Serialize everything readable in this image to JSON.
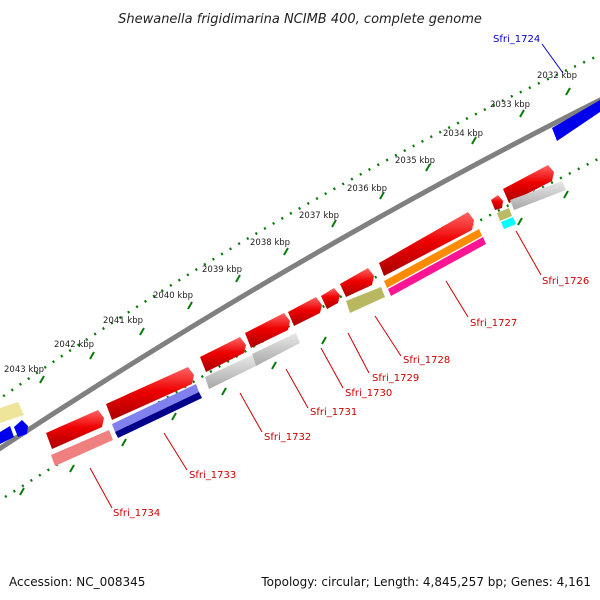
{
  "title": "Shewanella frigidimarina NCIMB 400, complete genome",
  "footer": {
    "accession": "Accession: NC_008345",
    "topology": "Topology: circular; Length: 4,845,257 bp; Genes: 4,161"
  },
  "kbp_labels": [
    "2032 kbp",
    "2033 kbp",
    "2034 kbp",
    "2035 kbp",
    "2036 kbp",
    "2037 kbp",
    "2038 kbp",
    "2039 kbp",
    "2040 kbp",
    "2041 kbp",
    "2042 kbp",
    "2043 kbp"
  ],
  "gene_labels": [
    {
      "text": "Sfri_1724",
      "color": "#0000cc"
    },
    {
      "text": "Sfri_1726",
      "color": "#cc0000"
    },
    {
      "text": "Sfri_1727",
      "color": "#cc0000"
    },
    {
      "text": "Sfri_1728",
      "color": "#cc0000"
    },
    {
      "text": "Sfri_1729",
      "color": "#cc0000"
    },
    {
      "text": "Sfri_1730",
      "color": "#cc0000"
    },
    {
      "text": "Sfri_1731",
      "color": "#cc0000"
    },
    {
      "text": "Sfri_1732",
      "color": "#cc0000"
    },
    {
      "text": "Sfri_1733",
      "color": "#cc0000"
    },
    {
      "text": "Sfri_1734",
      "color": "#cc0000"
    }
  ],
  "colors": {
    "gene_red": "#ee0000",
    "gene_blue": "#0000ee",
    "backbone": "#808080",
    "tick_green": "#0a7a0a"
  }
}
